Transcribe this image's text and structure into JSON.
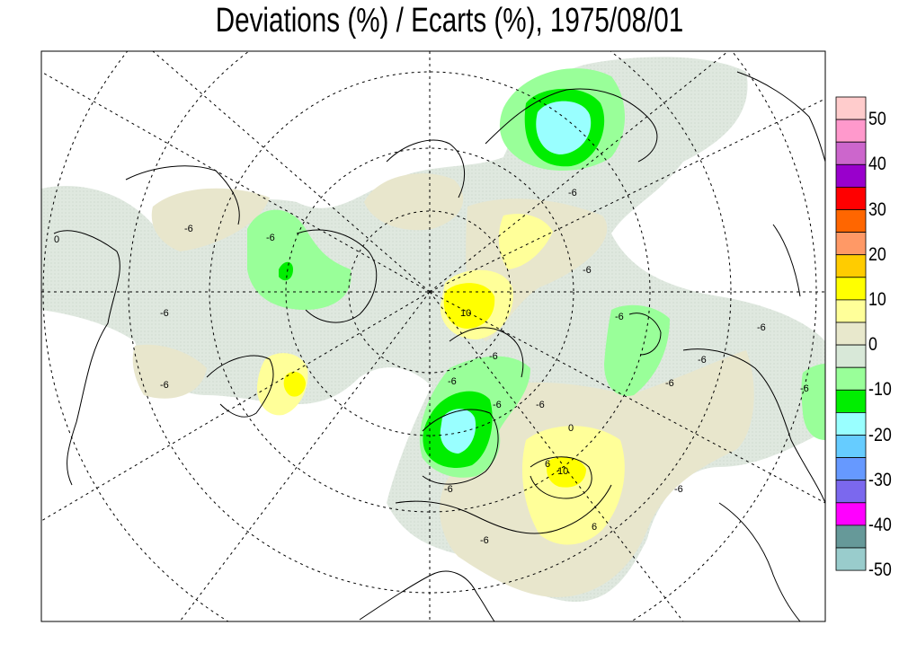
{
  "title": "Deviations (%) / Ecarts (%), 1975/08/01",
  "legend": {
    "colors_top_to_bottom": [
      "#ffcccc",
      "#ff99cc",
      "#cc66cc",
      "#9900cc",
      "#ff0000",
      "#ff6600",
      "#ff9966",
      "#ffcc00",
      "#ffff00",
      "#ffff99",
      "#e8e8cc",
      "#d8e8d8",
      "#99ff99",
      "#00ee00",
      "#99ffff",
      "#66ccff",
      "#6699ff",
      "#7b68ee",
      "#ff00ff",
      "#669999",
      "#99cccc"
    ],
    "tick_labels": [
      "50",
      "40",
      "30",
      "20",
      "10",
      "0",
      "-10",
      "-20",
      "-30",
      "-40",
      "-50"
    ]
  },
  "contour_labels": [
    "-6",
    "0",
    "-6",
    "-6",
    "-6",
    "10",
    "-6",
    "-6",
    "-6",
    "-6",
    "-6",
    "-6",
    "-6",
    "0",
    "-6",
    "6",
    "10",
    "6",
    "-6",
    "-6",
    "-6",
    "-6",
    "-6",
    "-6"
  ]
}
